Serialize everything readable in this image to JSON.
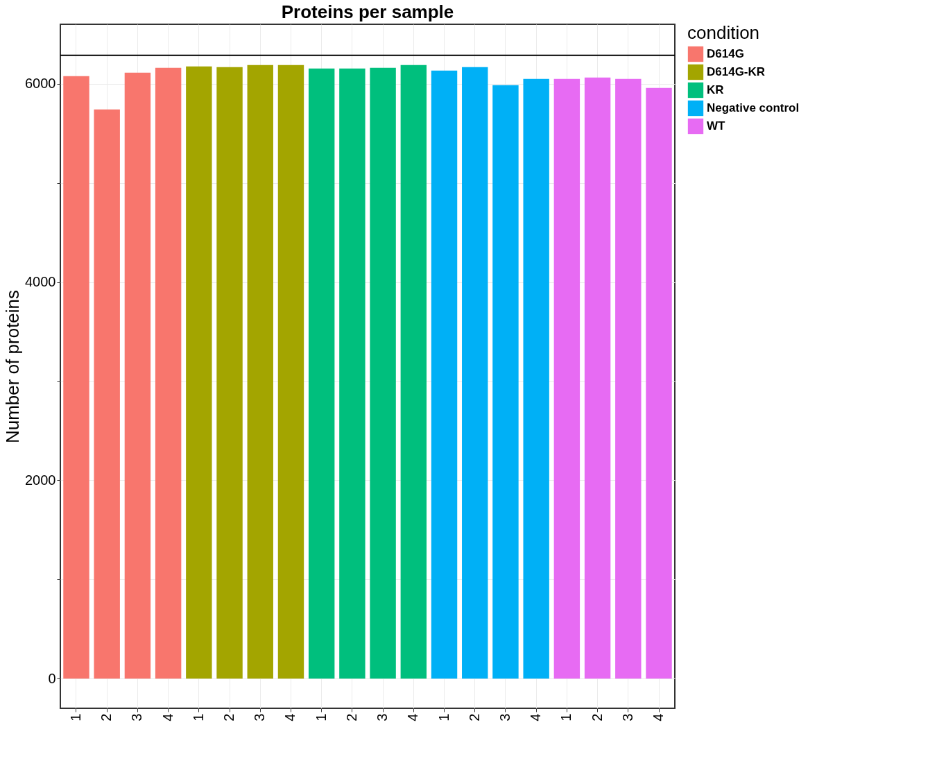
{
  "chart_data": {
    "type": "bar",
    "title": "Proteins per sample",
    "ylabel": "Number of proteins",
    "legend_title": "condition",
    "legend": "right",
    "categories": [
      "1",
      "2",
      "3",
      "4",
      "1",
      "2",
      "3",
      "4",
      "1",
      "2",
      "3",
      "4",
      "1",
      "2",
      "3",
      "4",
      "1",
      "2",
      "3",
      "4"
    ],
    "series": [
      {
        "name": "D614G",
        "color": "#f8766d",
        "values": [
          6077,
          5741,
          6112,
          6161,
          null,
          null,
          null,
          null,
          null,
          null,
          null,
          null,
          null,
          null,
          null,
          null,
          null,
          null,
          null,
          null
        ]
      },
      {
        "name": "D614G-KR",
        "color": "#a3a500",
        "values": [
          null,
          null,
          null,
          null,
          6175,
          6168,
          6189,
          6189,
          null,
          null,
          null,
          null,
          null,
          null,
          null,
          null,
          null,
          null,
          null,
          null
        ]
      },
      {
        "name": "KR",
        "color": "#00bf7d",
        "values": [
          null,
          null,
          null,
          null,
          null,
          null,
          null,
          null,
          6154,
          6154,
          6161,
          6189,
          null,
          null,
          null,
          null,
          null,
          null,
          null,
          null
        ]
      },
      {
        "name": "Negative control",
        "color": "#00b0f6",
        "values": [
          null,
          null,
          null,
          null,
          null,
          null,
          null,
          null,
          null,
          null,
          null,
          null,
          6133,
          6168,
          5986,
          6049,
          null,
          null,
          null,
          null
        ]
      },
      {
        "name": "WT",
        "color": "#e76bf3",
        "values": [
          null,
          null,
          null,
          null,
          null,
          null,
          null,
          null,
          null,
          null,
          null,
          null,
          null,
          null,
          null,
          null,
          6049,
          6063,
          6049,
          5958
        ]
      }
    ],
    "ylim": [
      -300,
      6600
    ],
    "yticks": [
      0,
      {
        "value": 1000,
        "label": null
      },
      2000,
      {
        "value": 3000,
        "label": null
      },
      4000,
      {
        "value": 5000,
        "label": null
      },
      6000
    ],
    "ref_lines": [
      {
        "axis": "y",
        "value": 6287,
        "color": "#000000"
      }
    ],
    "grid": true
  }
}
